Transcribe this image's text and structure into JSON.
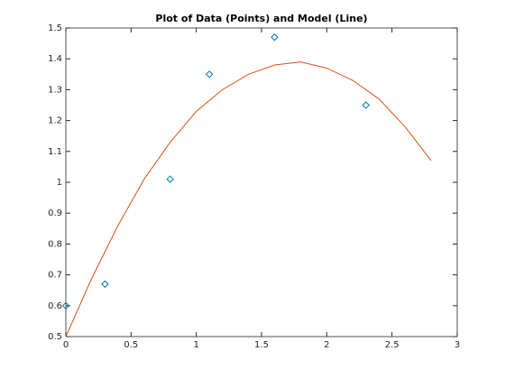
{
  "chart_data": {
    "type": "line",
    "title": "Plot of Data (Points) and Model (Line)",
    "xlim": [
      0,
      3
    ],
    "xticks": [
      0,
      0.5,
      1,
      1.5,
      2,
      2.5,
      3
    ],
    "ylim": [
      0.5,
      1.5
    ],
    "yticks": [
      0.5,
      0.6,
      0.7,
      0.8,
      0.9,
      1,
      1.1,
      1.2,
      1.3,
      1.4,
      1.5
    ],
    "box": true,
    "series": [
      {
        "style": "markers",
        "marker": "diamond",
        "color": "#0072bd",
        "x": [
          0,
          0.3,
          0.8,
          1.1,
          1.6,
          2.3
        ],
        "values": [
          0.6,
          0.67,
          1.01,
          1.35,
          1.47,
          1.25
        ]
      },
      {
        "style": "line",
        "color": "#d95319",
        "x": [
          0,
          0.2,
          0.4,
          0.6,
          0.8,
          1.0,
          1.2,
          1.4,
          1.6,
          1.8,
          2.0,
          2.2,
          2.4,
          2.6,
          2.8
        ],
        "values": [
          0.5,
          0.69,
          0.86,
          1.01,
          1.13,
          1.23,
          1.3,
          1.35,
          1.38,
          1.39,
          1.37,
          1.33,
          1.27,
          1.18,
          1.07
        ]
      }
    ]
  }
}
